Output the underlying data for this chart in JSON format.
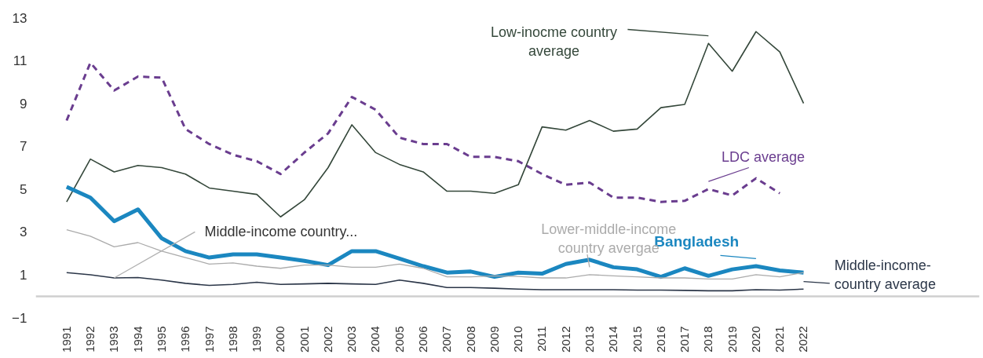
{
  "chart_data": {
    "type": "line",
    "categories": [
      "1991",
      "1992",
      "1993",
      "1994",
      "1995",
      "1996",
      "1997",
      "1998",
      "1999",
      "2000",
      "2001",
      "2002",
      "2003",
      "2004",
      "2005",
      "2006",
      "2007",
      "2008",
      "2009",
      "2010",
      "2011",
      "2012",
      "2013",
      "2014",
      "2015",
      "2016",
      "2017",
      "2018",
      "2019",
      "2020",
      "2021",
      "2022"
    ],
    "ylim": [
      -1,
      13
    ],
    "yticks": [
      -1,
      1,
      3,
      5,
      7,
      9,
      11,
      13
    ],
    "annotations": [
      {
        "text": "Middle-income country...",
        "x": "1993",
        "y": 0.85
      }
    ],
    "series": [
      {
        "name": "LDC average",
        "color": "#6a3d8f",
        "line_style": "dashed",
        "values": [
          8.2,
          10.9,
          9.6,
          10.25,
          10.2,
          7.8,
          7.1,
          6.6,
          6.3,
          5.7,
          6.7,
          7.6,
          9.3,
          8.7,
          7.4,
          7.1,
          7.1,
          6.5,
          6.5,
          6.3,
          5.7,
          5.2,
          5.3,
          4.6,
          4.6,
          4.4,
          4.45,
          5.0,
          4.7,
          5.5,
          4.8,
          null
        ]
      },
      {
        "name": "Low-inocme country average",
        "color": "#34473a",
        "line_style": "solid",
        "values": [
          4.4,
          6.4,
          5.8,
          6.1,
          6.0,
          5.7,
          5.05,
          4.9,
          4.75,
          3.7,
          4.5,
          6.0,
          8.0,
          6.7,
          6.15,
          5.8,
          4.9,
          4.9,
          4.8,
          5.2,
          7.9,
          7.75,
          8.2,
          7.7,
          7.8,
          8.8,
          8.95,
          11.8,
          10.5,
          12.35,
          11.4,
          9.0
        ]
      },
      {
        "name": "Bangladesh",
        "color": "#1b87c0",
        "line_style": "solid",
        "values": [
          5.1,
          4.6,
          3.5,
          4.05,
          2.7,
          2.1,
          1.8,
          1.95,
          1.95,
          1.8,
          1.65,
          1.45,
          2.1,
          2.1,
          1.75,
          1.4,
          1.1,
          1.15,
          0.9,
          1.1,
          1.05,
          1.5,
          1.7,
          1.35,
          1.25,
          0.9,
          1.3,
          0.95,
          1.25,
          1.4,
          1.2,
          1.1
        ]
      },
      {
        "name": "Lower-middle-income country avergae",
        "color": "#ababab",
        "line_style": "solid",
        "values": [
          3.1,
          2.8,
          2.3,
          2.5,
          2.1,
          1.8,
          1.5,
          1.55,
          1.4,
          1.3,
          1.45,
          1.45,
          1.35,
          1.35,
          1.5,
          1.3,
          0.9,
          0.9,
          0.95,
          0.92,
          0.85,
          0.85,
          1.0,
          0.95,
          0.9,
          0.85,
          0.85,
          0.8,
          0.8,
          1.0,
          0.9,
          1.1
        ]
      },
      {
        "name": "Middle-income-country average",
        "color": "#2b3648",
        "line_style": "solid",
        "values": [
          1.1,
          1.0,
          0.85,
          0.87,
          0.75,
          0.6,
          0.5,
          0.55,
          0.65,
          0.55,
          0.57,
          0.6,
          0.57,
          0.55,
          0.75,
          0.6,
          0.4,
          0.4,
          0.37,
          0.33,
          0.3,
          0.3,
          0.3,
          0.3,
          0.28,
          0.28,
          0.27,
          0.25,
          0.25,
          0.3,
          0.28,
          0.33
        ]
      }
    ]
  }
}
